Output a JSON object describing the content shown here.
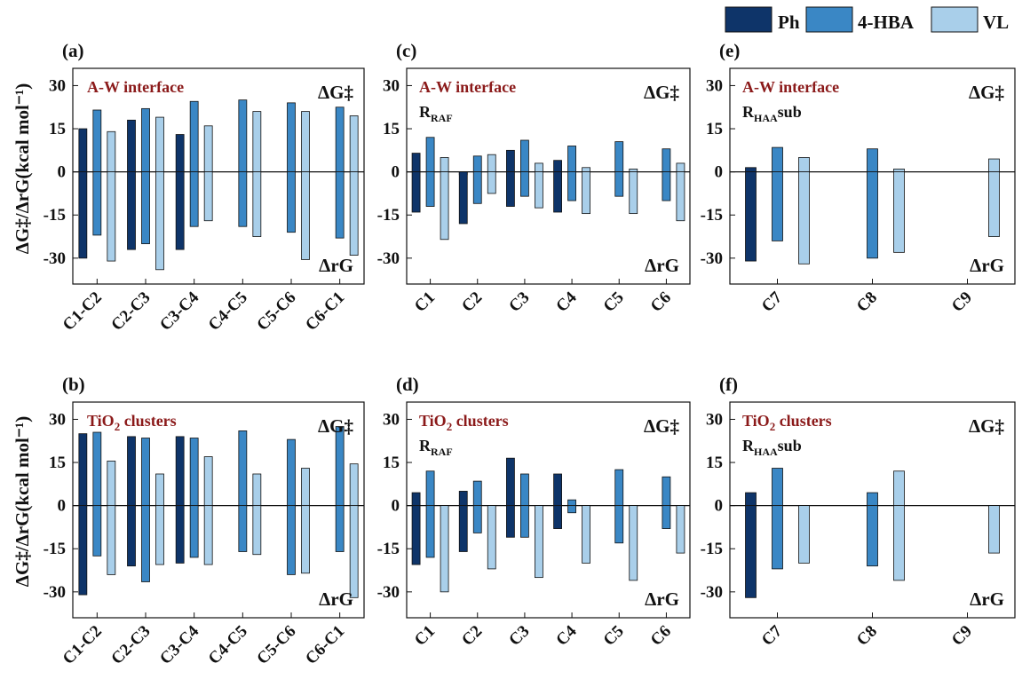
{
  "legend": {
    "entries": [
      {
        "label": "Ph",
        "color": "#0e3469"
      },
      {
        "label": "4-HBA",
        "color": "#3a87c5"
      },
      {
        "label": "VL",
        "color": "#a9cfea"
      }
    ]
  },
  "y_axis_label": "ΔG‡/ΔrG(kcal mol⁻¹)",
  "chart_data": [
    {
      "id": "a",
      "panel_label": "(a)",
      "type": "bar",
      "title_text": "A-W interface",
      "subtitle_main": "",
      "subtitle_sub": "",
      "top_right": "ΔG‡",
      "bottom_right": "ΔrG",
      "categories": [
        "C1-C2",
        "C2-C3",
        "C3-C4",
        "C4-C5",
        "C5-C6",
        "C6-C1"
      ],
      "ylim": [
        -39,
        36
      ],
      "yticks": [
        30,
        15,
        0,
        -15,
        -30
      ],
      "series": [
        {
          "name": "Ph",
          "positive": [
            15,
            18,
            13,
            null,
            null,
            null
          ],
          "negative": [
            -30,
            -27,
            -27,
            null,
            null,
            null
          ]
        },
        {
          "name": "4-HBA",
          "positive": [
            21.5,
            22,
            24.5,
            25,
            24,
            22.5
          ],
          "negative": [
            -22,
            -25,
            -19,
            -19,
            -21,
            -23
          ]
        },
        {
          "name": "VL",
          "positive": [
            14,
            19,
            16,
            21,
            21,
            19.5
          ],
          "negative": [
            -31,
            -34,
            -17,
            -22.5,
            -30.5,
            -29
          ]
        }
      ]
    },
    {
      "id": "c",
      "panel_label": "(c)",
      "type": "bar",
      "title_text": "A-W interface",
      "subtitle_main": "R",
      "subtitle_sub": "RAF",
      "top_right": "ΔG‡",
      "bottom_right": "ΔrG",
      "categories": [
        "C1",
        "C2",
        "C3",
        "C4",
        "C5",
        "C6"
      ],
      "ylim": [
        -39,
        36
      ],
      "yticks": [
        30,
        15,
        0,
        -15,
        -30
      ],
      "series": [
        {
          "name": "Ph",
          "positive": [
            6.5,
            -1,
            7.5,
            4,
            null,
            null
          ],
          "negative": [
            -14,
            -18,
            -12,
            -14,
            null,
            null
          ]
        },
        {
          "name": "4-HBA",
          "positive": [
            12,
            5.5,
            11,
            9,
            10.5,
            8
          ],
          "negative": [
            -12,
            -11,
            -8.5,
            -10,
            -8.5,
            -10
          ]
        },
        {
          "name": "VL",
          "positive": [
            5,
            6,
            3,
            1.5,
            1,
            3
          ],
          "negative": [
            -23.5,
            -7.5,
            -12.5,
            -14.5,
            -14.5,
            -17
          ]
        }
      ]
    },
    {
      "id": "e",
      "panel_label": "(e)",
      "type": "bar",
      "title_text": "A-W interface",
      "subtitle_main": "R",
      "subtitle_sub": "HAA",
      "subtitle_tail": "sub",
      "top_right": "ΔG‡",
      "bottom_right": "ΔrG",
      "categories": [
        "C7",
        "C8",
        "C9"
      ],
      "ylim": [
        -39,
        36
      ],
      "yticks": [
        30,
        15,
        0,
        -15,
        -30
      ],
      "series": [
        {
          "name": "Ph",
          "positive": [
            1.5,
            null,
            null
          ],
          "negative": [
            -31,
            null,
            null
          ]
        },
        {
          "name": "4-HBA",
          "positive": [
            8.5,
            8,
            null
          ],
          "negative": [
            -24,
            -30,
            null
          ]
        },
        {
          "name": "VL",
          "positive": [
            5,
            1,
            4.5
          ],
          "negative": [
            -32,
            -28,
            -22.5
          ]
        }
      ]
    },
    {
      "id": "b",
      "panel_label": "(b)",
      "type": "bar",
      "title_text": "TiO",
      "title_sub": "2",
      "title_tail": " clusters",
      "subtitle_main": "",
      "subtitle_sub": "",
      "top_right": "ΔG‡",
      "bottom_right": "ΔrG",
      "categories": [
        "C1-C2",
        "C2-C3",
        "C3-C4",
        "C4-C5",
        "C5-C6",
        "C6-C1"
      ],
      "ylim": [
        -39,
        36
      ],
      "yticks": [
        30,
        15,
        0,
        -15,
        -30
      ],
      "series": [
        {
          "name": "Ph",
          "positive": [
            25,
            24,
            24,
            null,
            null,
            null
          ],
          "negative": [
            -31,
            -21,
            -20,
            null,
            null,
            null
          ]
        },
        {
          "name": "4-HBA",
          "positive": [
            25.5,
            23.5,
            23.5,
            26,
            23,
            27.5
          ],
          "negative": [
            -17.5,
            -26.5,
            -18,
            -16,
            -24,
            -16
          ]
        },
        {
          "name": "VL",
          "positive": [
            15.5,
            11,
            17,
            11,
            13,
            14.5
          ],
          "negative": [
            -24,
            -20.5,
            -20.5,
            -17,
            -23.5,
            -32
          ]
        }
      ]
    },
    {
      "id": "d",
      "panel_label": "(d)",
      "type": "bar",
      "title_text": "TiO",
      "title_sub": "2",
      "title_tail": " clusters",
      "subtitle_main": "R",
      "subtitle_sub": "RAF",
      "top_right": "ΔG‡",
      "bottom_right": "ΔrG",
      "categories": [
        "C1",
        "C2",
        "C3",
        "C4",
        "C5",
        "C6"
      ],
      "ylim": [
        -39,
        36
      ],
      "yticks": [
        30,
        15,
        0,
        -15,
        -30
      ],
      "series": [
        {
          "name": "Ph",
          "positive": [
            4.5,
            5,
            16.5,
            11,
            null,
            null
          ],
          "negative": [
            -20.5,
            -16,
            -11,
            -8,
            null,
            null
          ]
        },
        {
          "name": "4-HBA",
          "positive": [
            12,
            8.5,
            11,
            2,
            12.5,
            10
          ],
          "negative": [
            -18,
            -9.5,
            -11,
            -2.5,
            -13,
            -8
          ]
        },
        {
          "name": "VL",
          "positive": [
            null,
            null,
            null,
            null,
            null,
            null
          ],
          "negative": [
            -30,
            -22,
            -25,
            -20,
            -26,
            -16.5
          ]
        }
      ]
    },
    {
      "id": "f",
      "panel_label": "(f)",
      "type": "bar",
      "title_text": "TiO",
      "title_sub": "2",
      "title_tail": " clusters",
      "subtitle_main": "R",
      "subtitle_sub": "HAA",
      "subtitle_tail": "sub",
      "top_right": "ΔG‡",
      "bottom_right": "ΔrG",
      "categories": [
        "C7",
        "C8",
        "C9"
      ],
      "ylim": [
        -39,
        36
      ],
      "yticks": [
        30,
        15,
        0,
        -15,
        -30
      ],
      "series": [
        {
          "name": "Ph",
          "positive": [
            4.5,
            null,
            null
          ],
          "negative": [
            -32,
            null,
            null
          ]
        },
        {
          "name": "4-HBA",
          "positive": [
            13,
            4.5,
            null
          ],
          "negative": [
            -22,
            -21,
            null
          ]
        },
        {
          "name": "VL",
          "positive": [
            null,
            12,
            null
          ],
          "negative": [
            -20,
            -26,
            -16.5
          ]
        }
      ]
    }
  ]
}
